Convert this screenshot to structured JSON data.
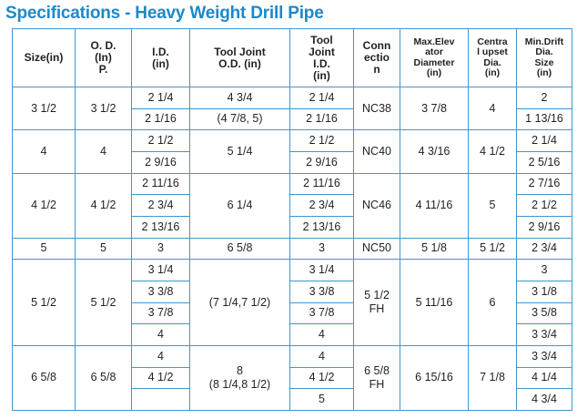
{
  "title": "Specifications - Heavy Weight Drill Pipe",
  "headers": {
    "size": "Size(in)",
    "od": [
      "O. D.",
      "(In)",
      "P."
    ],
    "id": [
      "I.D.",
      "(in)"
    ],
    "tj_od": [
      "Tool Joint",
      "O.D. (in)"
    ],
    "tj_id": [
      "Tool",
      "Joint",
      "I.D.",
      "(in)"
    ],
    "connection": [
      "Conn",
      "ectio",
      "n"
    ],
    "max_elev": [
      "Max.Elev",
      "ator",
      "Diameter",
      "(in)"
    ],
    "central_upset": [
      "Centra",
      "l upset",
      "Dia.",
      "(in)"
    ],
    "min_drift": [
      "Min.Drift",
      "Dia.",
      "Size",
      "(in)"
    ]
  },
  "groups": [
    {
      "size": "3 1/2",
      "od": "3 1/2",
      "tj_od": [
        "4 3/4",
        "(4 7/8, 5)"
      ],
      "tj_od_split": true,
      "connection": [
        "NC38"
      ],
      "max_elev": "3 7/8",
      "central_upset": "4",
      "rows": [
        {
          "id": "2 1/4",
          "tj_id": "2 1/4",
          "drift": "2"
        },
        {
          "id": "2 1/16",
          "tj_id": "2 1/16",
          "drift": "1 13/16"
        }
      ]
    },
    {
      "size": "4",
      "od": "4",
      "tj_od": [
        "5 1/4"
      ],
      "connection": [
        "NC40"
      ],
      "max_elev": "4 3/16",
      "central_upset": "4 1/2",
      "rows": [
        {
          "id": "2 1/2",
          "tj_id": "2 1/2",
          "drift": "2 1/4"
        },
        {
          "id": "2 9/16",
          "tj_id": "2 9/16",
          "drift": "2 5/16"
        }
      ]
    },
    {
      "size": "4 1/2",
      "od": "4 1/2",
      "tj_od": [
        "6 1/4"
      ],
      "connection": [
        "NC46"
      ],
      "max_elev": "4 11/16",
      "central_upset": "5",
      "rows": [
        {
          "id": "2 11/16",
          "tj_id": "2 11/16",
          "drift": "2 7/16"
        },
        {
          "id": "2 3/4",
          "tj_id": "2 3/4",
          "drift": "2 1/2"
        },
        {
          "id": "2 13/16",
          "tj_id": "2 13/16",
          "drift": "2 9/16"
        }
      ]
    },
    {
      "size": "5",
      "od": "5",
      "tj_od": [
        "6 5/8"
      ],
      "connection": [
        "NC50"
      ],
      "max_elev": "5 1/8",
      "central_upset": "5 1/2",
      "rows": [
        {
          "id": "3",
          "tj_id": "3",
          "drift": "2 3/4"
        }
      ]
    },
    {
      "size": "5 1/2",
      "od": "5 1/2",
      "tj_od": [
        "(7 1/4,7 1/2)"
      ],
      "connection": [
        "5 1/2",
        "FH"
      ],
      "max_elev": "5 11/16",
      "central_upset": "6",
      "rows": [
        {
          "id": "3 1/4",
          "tj_id": "3 1/4",
          "drift": "3"
        },
        {
          "id": "3 3/8",
          "tj_id": "3 3/8",
          "drift": "3 1/8"
        },
        {
          "id": "3 7/8",
          "tj_id": "3 7/8",
          "drift": "3 5/8"
        },
        {
          "id": "4",
          "tj_id": "4",
          "drift": "3 3/4"
        }
      ]
    },
    {
      "size": "6 5/8",
      "od": "6 5/8",
      "tj_od": [
        "8",
        "(8 1/4,8 1/2)"
      ],
      "connection": [
        "6 5/8",
        "FH"
      ],
      "max_elev": "6 15/16",
      "central_upset": "7 1/8",
      "rows": [
        {
          "id": "4",
          "tj_id": "4",
          "drift": "3 3/4"
        },
        {
          "id": "4 1/2",
          "tj_id": "4 1/2",
          "drift": "4 1/4"
        },
        {
          "id": "",
          "tj_id": "5",
          "drift": "4 3/4"
        }
      ]
    }
  ]
}
